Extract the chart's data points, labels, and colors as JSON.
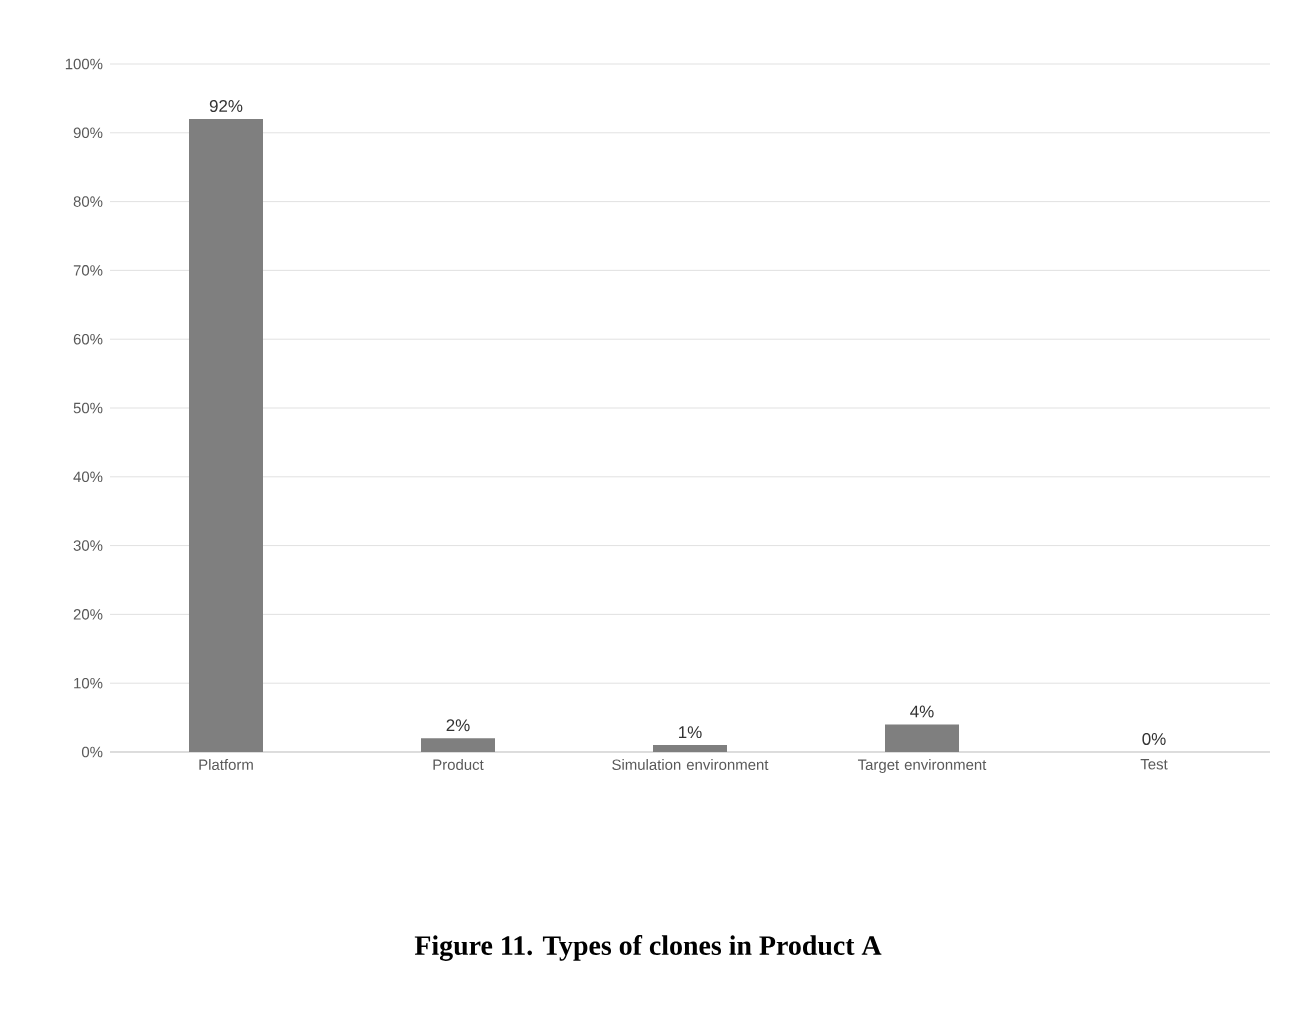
{
  "chart_data": {
    "type": "bar",
    "categories": [
      "Platform",
      "Product",
      "Simulation environment",
      "Target environment",
      "Test"
    ],
    "values": [
      92,
      2,
      1,
      4,
      0
    ],
    "color": "#7f7f7f",
    "value_labels": [
      "92%",
      "2%",
      "1%",
      "4%",
      "0%"
    ],
    "ylim": [
      0,
      100
    ],
    "yticks": [
      {
        "value": 0,
        "label": "0%"
      },
      {
        "value": 10,
        "label": "10%"
      },
      {
        "value": 20,
        "label": "20%"
      },
      {
        "value": 30,
        "label": "30%"
      },
      {
        "value": 40,
        "label": "40%"
      },
      {
        "value": 50,
        "label": "50%"
      },
      {
        "value": 60,
        "label": "60%"
      },
      {
        "value": 70,
        "label": "70%"
      },
      {
        "value": 80,
        "label": "80%"
      },
      {
        "value": 90,
        "label": "90%"
      },
      {
        "value": 100,
        "label": "100%"
      }
    ],
    "grid": "y",
    "annotations": [
      "Figure 11. Types of clones in Product A"
    ]
  }
}
